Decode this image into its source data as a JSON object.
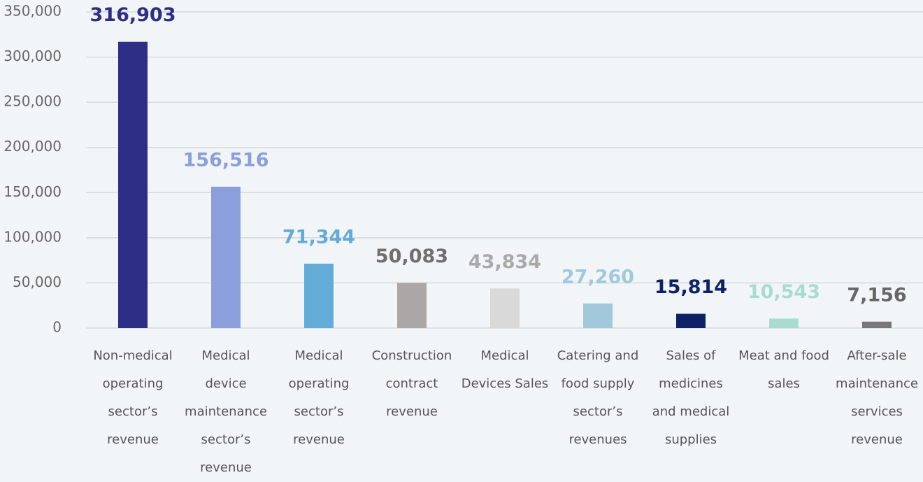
{
  "chart_data": {
    "type": "bar",
    "categories": [
      "Non-medical operating sector’s revenue",
      "Medical device maintenance sector’s revenue",
      "Medical operating sector’s revenue",
      "Construction contract revenue",
      "Medical Devices Sales",
      "Catering and food supply sector’s revenues",
      "Sales of medicines and medical supplies",
      "Meat and food sales",
      "After-sale maintenance services revenue"
    ],
    "values": [
      316903,
      156516,
      71344,
      50083,
      43834,
      27260,
      15814,
      10543,
      7156
    ],
    "value_labels": [
      "316,903",
      "156,516",
      "71,344",
      "50,083",
      "43,834",
      "27,260",
      "15,814",
      "10,543",
      "7,156"
    ],
    "colors": [
      "#2e2e86",
      "#8a9fdb",
      "#64acd8",
      "#aba7a7",
      "#d9d9d9",
      "#a2c8dc",
      "#0d2266",
      "#a8dccf",
      "#777777"
    ],
    "label_colors": [
      "#2e2e86",
      "#8a9fdb",
      "#64acd8",
      "#6f6f6f",
      "#a9a9a9",
      "#a2c8dc",
      "#0d2266",
      "#a8dccf",
      "#666666"
    ],
    "ylim": [
      0,
      350000
    ],
    "yticks": [
      0,
      {
        "value": 50000,
        "label": "50,000"
      },
      {
        "value": 100000,
        "label": "100,000"
      },
      {
        "value": 150000,
        "label": "150,000"
      },
      {
        "value": 200000,
        "label": "200,000"
      },
      {
        "value": 250000,
        "label": "250,000"
      },
      {
        "value": 300000,
        "label": "300,000"
      },
      {
        "value": 350000,
        "label": "350,000"
      }
    ],
    "grid": true
  }
}
